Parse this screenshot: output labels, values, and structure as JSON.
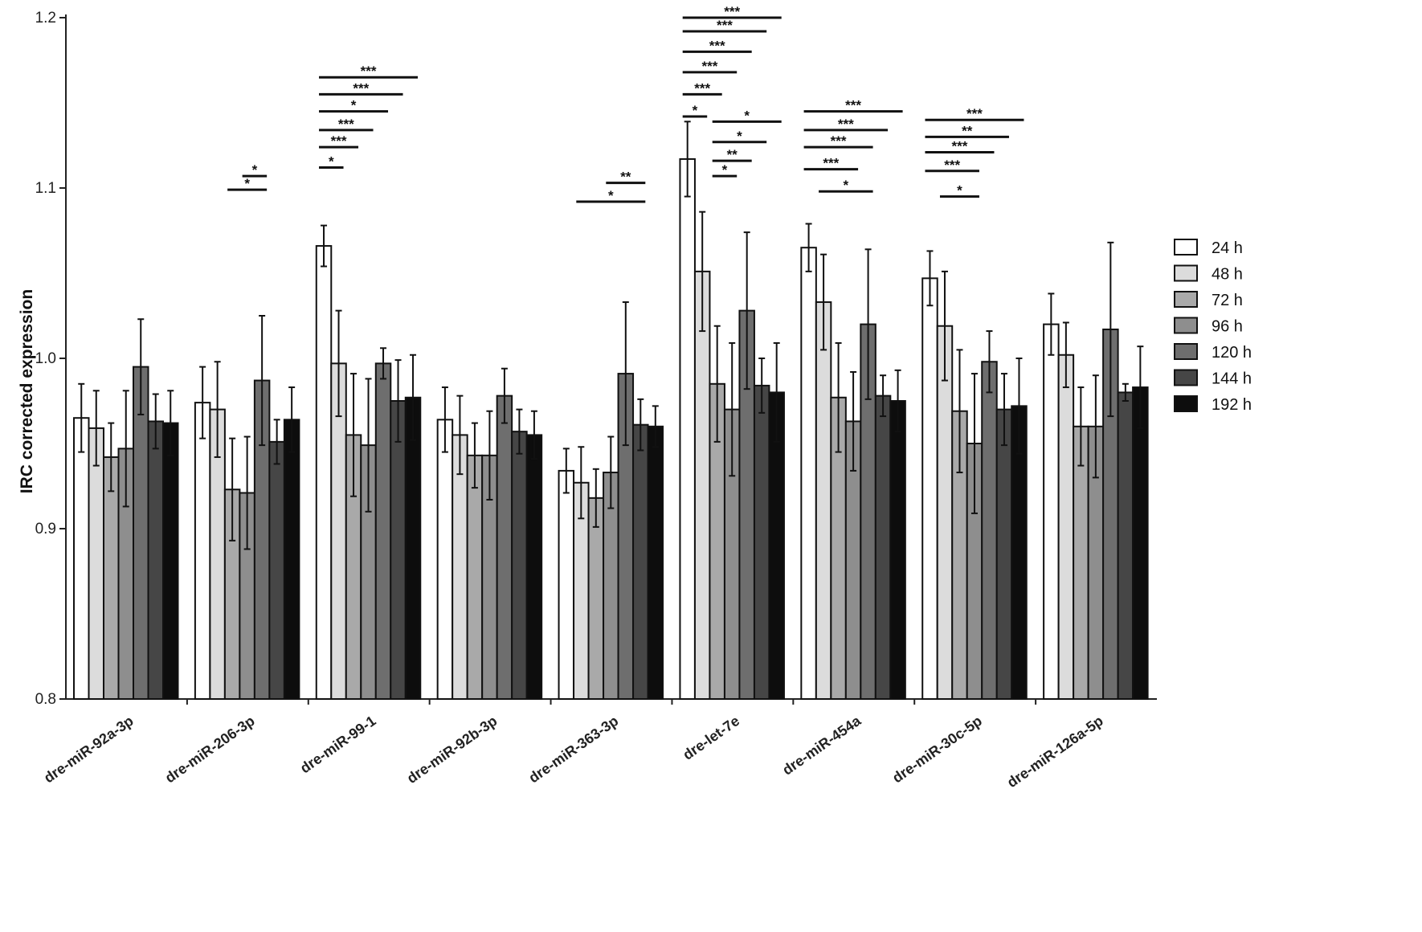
{
  "chart_data": {
    "type": "bar",
    "title": "",
    "xlabel": "",
    "ylabel": "IRC corrected expression",
    "ylim": [
      0.8,
      1.2
    ],
    "yticks": [
      "0.8",
      "0.9",
      "1.0",
      "1.1",
      "1.2"
    ],
    "ytick_values": [
      0.8,
      0.9,
      1.0,
      1.1,
      1.2
    ],
    "categories": [
      "dre-miR-92a-3p",
      "dre-miR-206-3p",
      "dre-miR-99-1",
      "dre-miR-92b-3p",
      "dre-miR-363-3p",
      "dre-let-7e",
      "dre-miR-454a",
      "dre-miR-30c-5p",
      "dre-miR-126a-5p"
    ],
    "legend_position": "right",
    "series": [
      {
        "name": "24 h",
        "color": "#ffffff",
        "values": [
          0.965,
          0.974,
          1.066,
          0.964,
          0.934,
          1.117,
          1.065,
          1.047,
          1.02
        ],
        "errors": [
          0.02,
          0.021,
          0.012,
          0.019,
          0.013,
          0.022,
          0.014,
          0.016,
          0.018
        ]
      },
      {
        "name": "48 h",
        "color": "#dcdcdc",
        "values": [
          0.959,
          0.97,
          0.997,
          0.955,
          0.927,
          1.051,
          1.033,
          1.019,
          1.002
        ],
        "errors": [
          0.022,
          0.028,
          0.031,
          0.023,
          0.021,
          0.035,
          0.028,
          0.032,
          0.019
        ]
      },
      {
        "name": "72 h",
        "color": "#a9a9a9",
        "values": [
          0.942,
          0.923,
          0.955,
          0.943,
          0.918,
          0.985,
          0.977,
          0.969,
          0.96
        ],
        "errors": [
          0.02,
          0.03,
          0.036,
          0.019,
          0.017,
          0.034,
          0.032,
          0.036,
          0.023
        ]
      },
      {
        "name": "96 h",
        "color": "#8e8e8e",
        "values": [
          0.947,
          0.921,
          0.949,
          0.943,
          0.933,
          0.97,
          0.963,
          0.95,
          0.96
        ],
        "errors": [
          0.034,
          0.033,
          0.039,
          0.026,
          0.021,
          0.039,
          0.029,
          0.041,
          0.03
        ]
      },
      {
        "name": "120 h",
        "color": "#6e6e6e",
        "values": [
          0.995,
          0.987,
          0.997,
          0.978,
          0.991,
          1.028,
          1.02,
          0.998,
          1.017
        ],
        "errors": [
          0.028,
          0.038,
          0.009,
          0.016,
          0.042,
          0.046,
          0.044,
          0.018,
          0.051
        ]
      },
      {
        "name": "144 h",
        "color": "#464646",
        "values": [
          0.963,
          0.951,
          0.975,
          0.957,
          0.961,
          0.984,
          0.978,
          0.97,
          0.98
        ],
        "errors": [
          0.016,
          0.013,
          0.024,
          0.013,
          0.015,
          0.016,
          0.012,
          0.021,
          0.005
        ]
      },
      {
        "name": "192 h",
        "color": "#0d0d0d",
        "values": [
          0.962,
          0.964,
          0.977,
          0.955,
          0.96,
          0.98,
          0.975,
          0.972,
          0.983
        ],
        "errors": [
          0.019,
          0.019,
          0.025,
          0.014,
          0.012,
          0.029,
          0.018,
          0.028,
          0.024
        ]
      }
    ],
    "significance": [
      {
        "category": 1,
        "from": 3,
        "to": 4,
        "y": 1.107,
        "label": "*"
      },
      {
        "category": 1,
        "from": 2,
        "to": 4,
        "y": 1.099,
        "label": "*"
      },
      {
        "category": 2,
        "from": 0,
        "to": 6,
        "y": 1.165,
        "label": "***"
      },
      {
        "category": 2,
        "from": 0,
        "to": 5,
        "y": 1.155,
        "label": "***"
      },
      {
        "category": 2,
        "from": 0,
        "to": 4,
        "y": 1.145,
        "label": "*"
      },
      {
        "category": 2,
        "from": 0,
        "to": 3,
        "y": 1.134,
        "label": "***"
      },
      {
        "category": 2,
        "from": 0,
        "to": 2,
        "y": 1.124,
        "label": "***"
      },
      {
        "category": 2,
        "from": 0,
        "to": 1,
        "y": 1.112,
        "label": "*"
      },
      {
        "category": 4,
        "from": 3,
        "to": 5,
        "y": 1.103,
        "label": "**"
      },
      {
        "category": 4,
        "from": 1,
        "to": 5,
        "y": 1.092,
        "label": "*"
      },
      {
        "category": 5,
        "from": 0,
        "to": 6,
        "y": 1.2,
        "label": "***"
      },
      {
        "category": 5,
        "from": 0,
        "to": 5,
        "y": 1.192,
        "label": "***"
      },
      {
        "category": 5,
        "from": 0,
        "to": 4,
        "y": 1.18,
        "label": "***"
      },
      {
        "category": 5,
        "from": 0,
        "to": 3,
        "y": 1.168,
        "label": "***"
      },
      {
        "category": 5,
        "from": 0,
        "to": 2,
        "y": 1.155,
        "label": "***"
      },
      {
        "category": 5,
        "from": 0,
        "to": 1,
        "y": 1.142,
        "label": "*"
      },
      {
        "category": 5,
        "from": 2,
        "to": 6,
        "y": 1.139,
        "label": "*"
      },
      {
        "category": 5,
        "from": 2,
        "to": 5,
        "y": 1.127,
        "label": "*"
      },
      {
        "category": 5,
        "from": 2,
        "to": 4,
        "y": 1.116,
        "label": "**"
      },
      {
        "category": 5,
        "from": 2,
        "to": 3,
        "y": 1.107,
        "label": "*"
      },
      {
        "category": 6,
        "from": 0,
        "to": 6,
        "y": 1.145,
        "label": "***"
      },
      {
        "category": 6,
        "from": 0,
        "to": 5,
        "y": 1.134,
        "label": "***"
      },
      {
        "category": 6,
        "from": 0,
        "to": 4,
        "y": 1.124,
        "label": "***"
      },
      {
        "category": 6,
        "from": 0,
        "to": 3,
        "y": 1.111,
        "label": "***"
      },
      {
        "category": 6,
        "from": 1,
        "to": 4,
        "y": 1.098,
        "label": "*"
      },
      {
        "category": 7,
        "from": 0,
        "to": 6,
        "y": 1.14,
        "label": "***"
      },
      {
        "category": 7,
        "from": 0,
        "to": 5,
        "y": 1.13,
        "label": "**"
      },
      {
        "category": 7,
        "from": 0,
        "to": 4,
        "y": 1.121,
        "label": "***"
      },
      {
        "category": 7,
        "from": 0,
        "to": 3,
        "y": 1.11,
        "label": "***"
      },
      {
        "category": 7,
        "from": 1,
        "to": 3,
        "y": 1.095,
        "label": "*"
      }
    ]
  }
}
